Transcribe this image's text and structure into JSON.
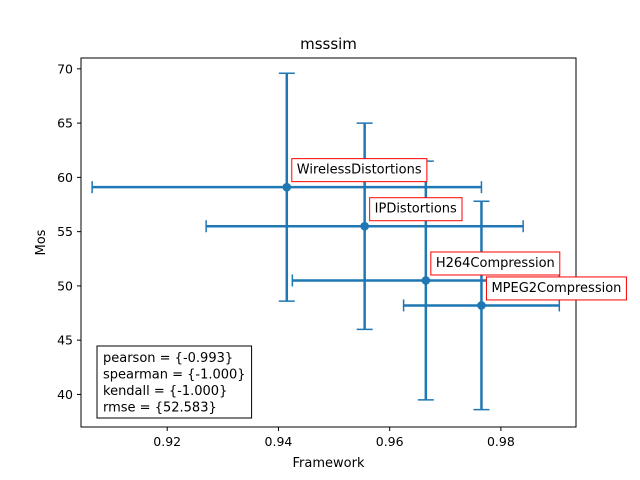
{
  "chart_data": {
    "type": "scatter",
    "title": "msssim",
    "xlabel": "Framework",
    "ylabel": "Mos",
    "xlim": [
      0.9045,
      0.9935
    ],
    "ylim": [
      37.0,
      71.0
    ],
    "xticks": [
      0.92,
      0.94,
      0.96,
      0.98
    ],
    "xtick_labels": [
      "0.92",
      "0.94",
      "0.96",
      "0.98"
    ],
    "yticks": [
      40,
      45,
      50,
      55,
      60,
      65,
      70
    ],
    "ytick_labels": [
      "40",
      "45",
      "50",
      "55",
      "60",
      "65",
      "70"
    ],
    "grid": false,
    "color": "#1f77b4",
    "annotation_color": "#ff0000",
    "points": [
      {
        "label": "WirelessDistortions",
        "x": 0.9415,
        "y": 59.1,
        "xerr": 0.035,
        "yerr": 10.5
      },
      {
        "label": "IPDistortions",
        "x": 0.9555,
        "y": 55.5,
        "xerr": 0.0285,
        "yerr": 9.5
      },
      {
        "label": "H264Compression",
        "x": 0.9665,
        "y": 50.5,
        "xerr": 0.024,
        "yerr": 11.0
      },
      {
        "label": "MPEG2Compression",
        "x": 0.9765,
        "y": 48.2,
        "xerr": 0.014,
        "yerr": 9.6
      }
    ],
    "stats": [
      "pearson = {-0.993}",
      "spearman = {-1.000}",
      "kendall = {-1.000}",
      "rmse = {52.583}"
    ]
  }
}
